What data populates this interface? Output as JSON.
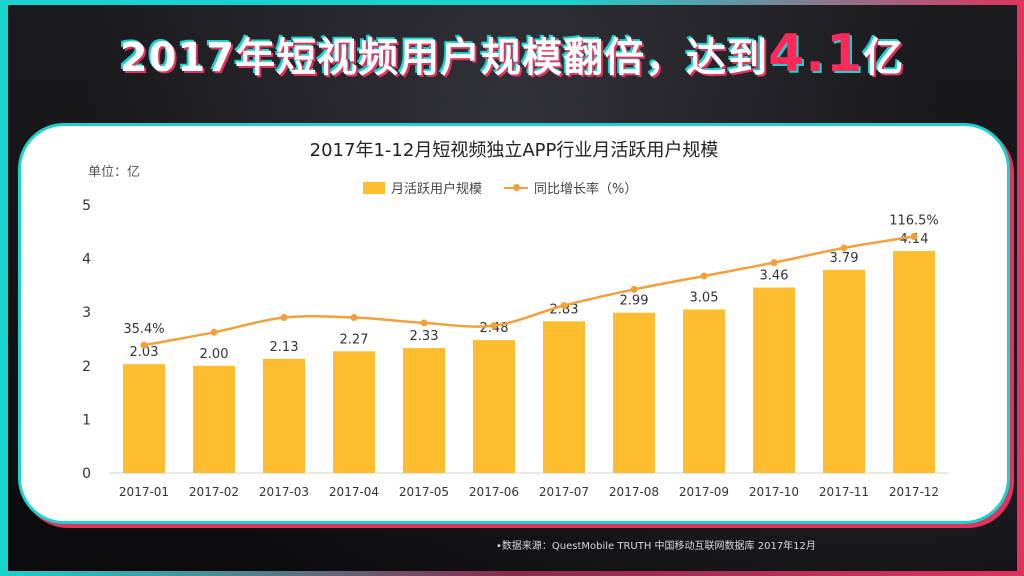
{
  "headline": {
    "prefix": "2017年短视频用户规模翻倍，达到",
    "accent": "4.1",
    "suffix": "亿"
  },
  "colors": {
    "bar": "#fdbd2e",
    "line": "#f0a03c",
    "teal": "#19d3cf",
    "pink": "#e0335d"
  },
  "source": "•数据来源：QuestMobile TRUTH 中国移动互联网数据库 2017年12月",
  "chart_data": {
    "type": "bar",
    "title": "2017年1-12月短视频独立APP行业月活跃用户规模",
    "unit_label": "单位：亿",
    "categories": [
      "2017-01",
      "2017-02",
      "2017-03",
      "2017-04",
      "2017-05",
      "2017-06",
      "2017-07",
      "2017-08",
      "2017-09",
      "2017-10",
      "2017-11",
      "2017-12"
    ],
    "series": [
      {
        "name": "月活跃用户规模",
        "type": "bar",
        "values": [
          2.03,
          2.0,
          2.13,
          2.27,
          2.33,
          2.48,
          2.83,
          2.99,
          3.05,
          3.46,
          3.79,
          4.14
        ],
        "labels": [
          "2.03",
          "2.00",
          "2.13",
          "2.27",
          "2.33",
          "2.48",
          "2.83",
          "2.99",
          "3.05",
          "3.46",
          "3.79",
          "4.14"
        ]
      },
      {
        "name": "同比增长率（%）",
        "type": "line",
        "values": [
          35.4,
          45,
          56,
          56,
          52,
          50,
          65,
          77,
          87,
          97,
          108,
          116.5
        ],
        "point_labels": {
          "0": "35.4%",
          "11": "116.5%"
        }
      }
    ],
    "yticks": [
      "0",
      "1",
      "2",
      "3",
      "4",
      "5"
    ],
    "ylim": [
      0,
      5
    ],
    "line_ylim": [
      -60,
      140
    ],
    "legend_position": "top-center",
    "grid": false
  }
}
